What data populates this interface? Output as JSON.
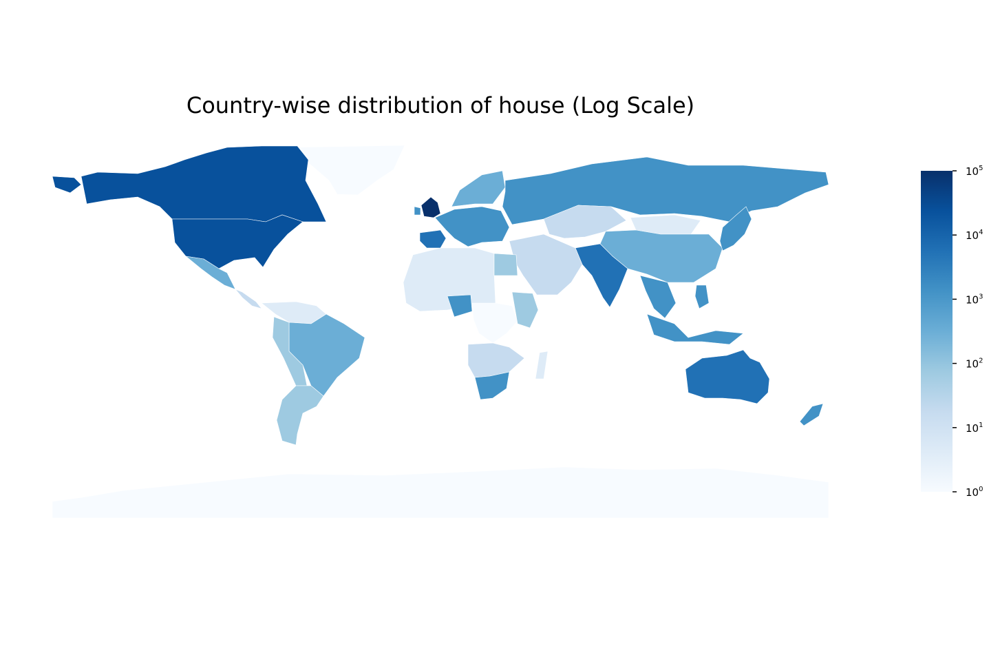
{
  "title": "Country-wise distribution of house (Log Scale)",
  "chart_data": {
    "type": "heatmap",
    "subtype": "choropleth",
    "title": "Country-wise distribution of house (Log Scale)",
    "scale": "log10",
    "colormap": "Blues",
    "colors": [
      "#f7fbff",
      "#deebf7",
      "#c6dbef",
      "#9ecae1",
      "#6baed6",
      "#4292c6",
      "#2171b5",
      "#08519c",
      "#08306b"
    ],
    "colorbar": {
      "range": [
        1,
        100000
      ],
      "ticks": [
        {
          "base": "10",
          "exp": "0",
          "value": 1
        },
        {
          "base": "10",
          "exp": "1",
          "value": 10
        },
        {
          "base": "10",
          "exp": "2",
          "value": 100
        },
        {
          "base": "10",
          "exp": "3",
          "value": 1000
        },
        {
          "base": "10",
          "exp": "4",
          "value": 10000
        },
        {
          "base": "10",
          "exp": "5",
          "value": 100000
        }
      ]
    },
    "regions": [
      {
        "name": "Greenland",
        "log_value": 0.1
      },
      {
        "name": "Canada",
        "log_value": 4.1
      },
      {
        "name": "United States",
        "log_value": 4.1
      },
      {
        "name": "Alaska",
        "log_value": 4.1
      },
      {
        "name": "Mexico",
        "log_value": 2.7
      },
      {
        "name": "Central America",
        "log_value": 1.2
      },
      {
        "name": "Venezuela/Colombia",
        "log_value": 0.5
      },
      {
        "name": "Brazil",
        "log_value": 2.5
      },
      {
        "name": "Peru/Bolivia",
        "log_value": 1.8
      },
      {
        "name": "Argentina/Chile",
        "log_value": 1.9
      },
      {
        "name": "United Kingdom",
        "log_value": 5.0
      },
      {
        "name": "Ireland",
        "log_value": 3.4
      },
      {
        "name": "Iberia",
        "log_value": 3.6
      },
      {
        "name": "Western Europe",
        "log_value": 3.1
      },
      {
        "name": "Scandinavia",
        "log_value": 2.6
      },
      {
        "name": "Russia",
        "log_value": 3.1
      },
      {
        "name": "Central Asia",
        "log_value": 1.2
      },
      {
        "name": "Mongolia",
        "log_value": 0.9
      },
      {
        "name": "China",
        "log_value": 2.7
      },
      {
        "name": "India",
        "log_value": 3.7
      },
      {
        "name": "Middle East",
        "log_value": 1.0
      },
      {
        "name": "North Africa",
        "log_value": 0.8
      },
      {
        "name": "Egypt",
        "log_value": 2.0
      },
      {
        "name": "Nigeria",
        "log_value": 3.0
      },
      {
        "name": "Central Africa",
        "log_value": 0.2
      },
      {
        "name": "East Africa",
        "log_value": 1.8
      },
      {
        "name": "Southern Africa",
        "log_value": 1.4
      },
      {
        "name": "South Africa",
        "log_value": 3.2
      },
      {
        "name": "Madagascar",
        "log_value": 0.8
      },
      {
        "name": "Southeast Asia",
        "log_value": 3.0
      },
      {
        "name": "Indonesia",
        "log_value": 2.9
      },
      {
        "name": "Philippines",
        "log_value": 3.3
      },
      {
        "name": "Japan",
        "log_value": 3.4
      },
      {
        "name": "Australia",
        "log_value": 3.7
      },
      {
        "name": "New Zealand",
        "log_value": 2.9
      },
      {
        "name": "Antarctica",
        "log_value": 0.1
      }
    ]
  }
}
